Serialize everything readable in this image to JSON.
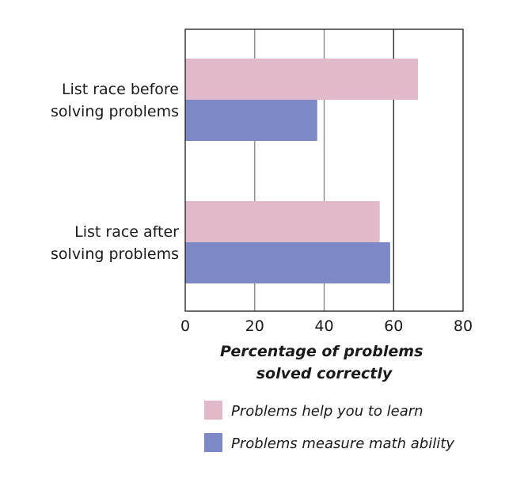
{
  "chart_data": {
    "type": "bar",
    "orientation": "horizontal",
    "title": "",
    "categories": [
      [
        "List race before",
        "solving problems"
      ],
      [
        "List race after",
        "solving problems"
      ]
    ],
    "series": [
      {
        "name": "Problems help you to learn",
        "color": "#e2b8cb",
        "values": [
          67,
          56
        ]
      },
      {
        "name": "Problems measure math ability",
        "color": "#7c89c6",
        "values": [
          38,
          59
        ]
      }
    ],
    "xlabel": [
      "Percentage of problems",
      "solved correctly"
    ],
    "ylabel": "",
    "xlim": [
      0,
      80
    ],
    "xticks": [
      0,
      20,
      40,
      60,
      80
    ],
    "grid": true,
    "legend_position": "bottom"
  }
}
